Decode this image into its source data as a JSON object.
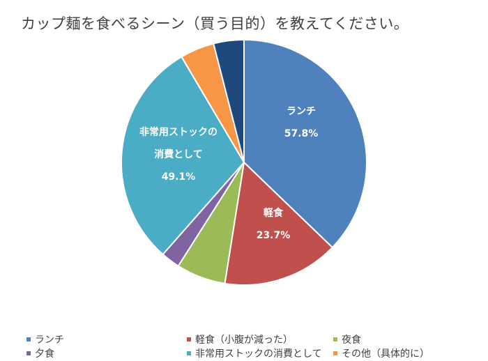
{
  "chart_data": {
    "type": "pie",
    "title": "カップ麺を食べるシーン（買う目的）を教えてください。",
    "slices": [
      {
        "name": "ランチ",
        "share": 0.372,
        "color": "#4F81BD",
        "label_lines": [
          "ランチ",
          "57.8%"
        ]
      },
      {
        "name": "軽食（小腹が減った）",
        "share": 0.153,
        "color": "#C0504D",
        "label_lines": [
          "軽食",
          "23.7%"
        ]
      },
      {
        "name": "夜食",
        "share": 0.065,
        "color": "#9BBB59",
        "label_lines": []
      },
      {
        "name": "夕食",
        "share": 0.025,
        "color": "#8064A2",
        "label_lines": []
      },
      {
        "name": "非常用ストックの消費として",
        "share": 0.3,
        "color": "#4BACC6",
        "label_lines": [
          "非常用ストックの",
          "消費として",
          "49.1%"
        ]
      },
      {
        "name": "その他（具体的に）",
        "share": 0.045,
        "color": "#F79646",
        "label_lines": []
      },
      {
        "name": "",
        "share": 0.04,
        "color": "#1F497D",
        "label_lines": []
      }
    ],
    "legend_placement": "bottom"
  },
  "legend": [
    {
      "label": "ランチ",
      "color": "#4F81BD"
    },
    {
      "label": "軽食（小腹が減った）",
      "color": "#C0504D"
    },
    {
      "label": "夜食",
      "color": "#9BBB59"
    },
    {
      "label": "夕食",
      "color": "#8064A2"
    },
    {
      "label": "非常用ストックの消費として",
      "color": "#4BACC6"
    },
    {
      "label": "その他（具体的に）",
      "color": "#F79646"
    }
  ]
}
